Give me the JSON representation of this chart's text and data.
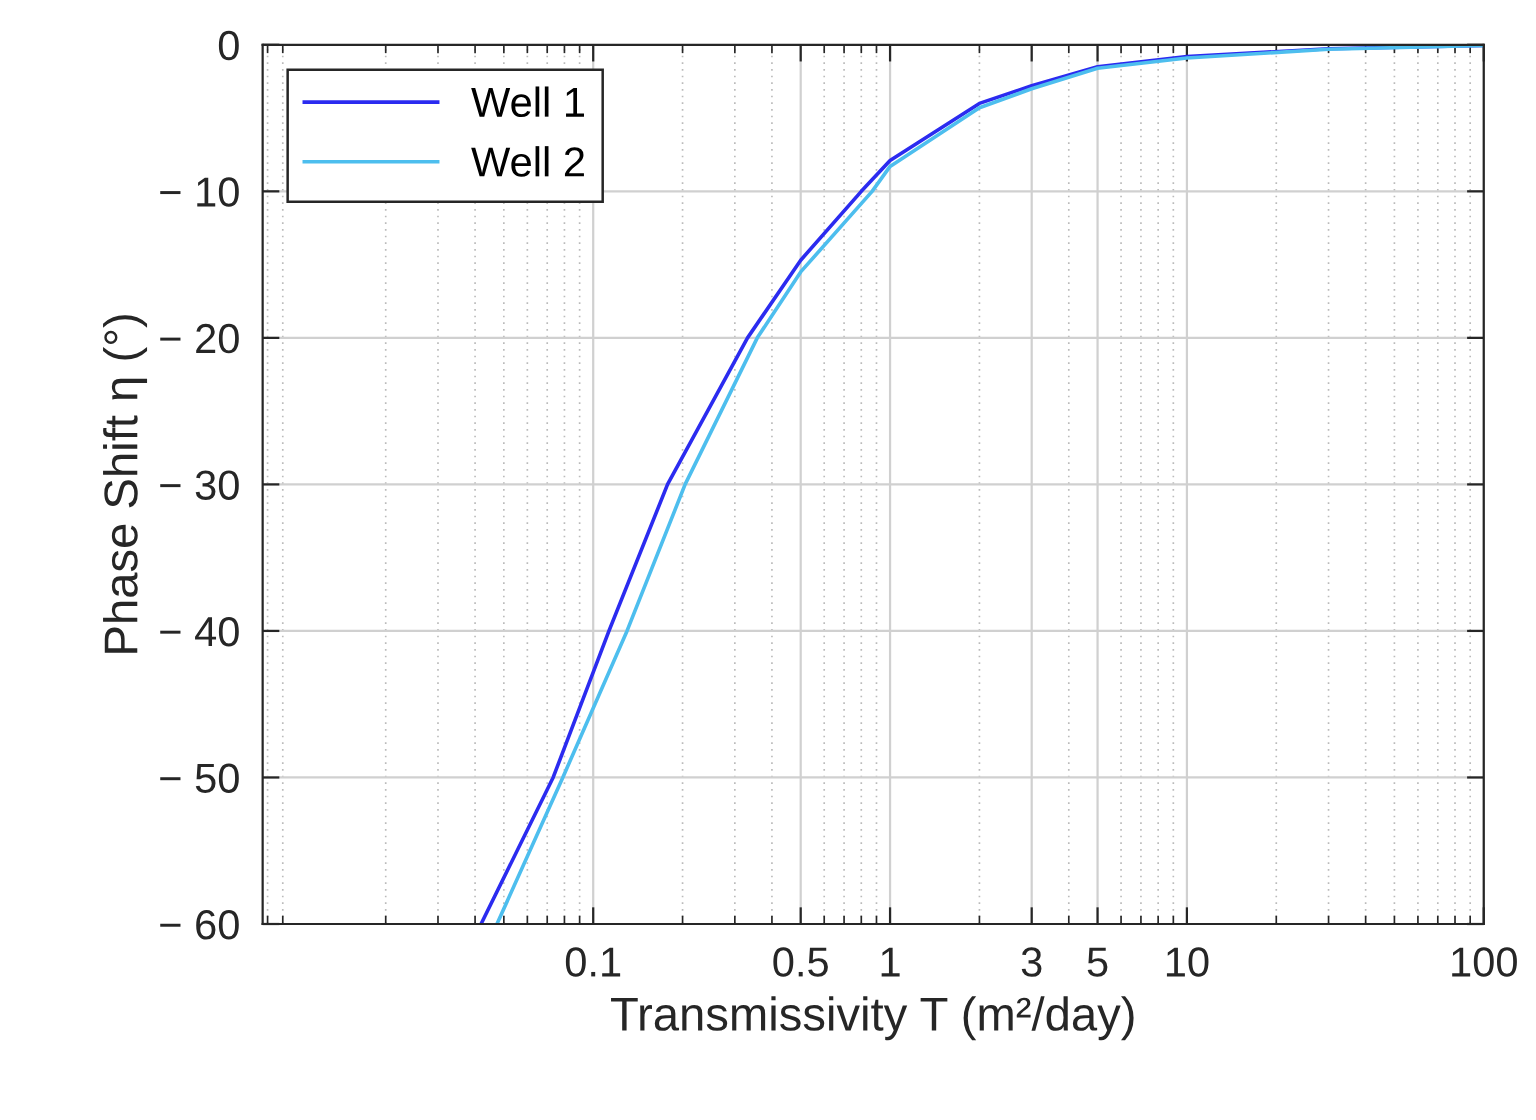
{
  "chart_data": {
    "type": "line",
    "xlabel": "Transmissivity T (m²/day)",
    "ylabel": "Phase Shift η (°)",
    "log": "x",
    "xlim": [
      0.0077,
      100
    ],
    "ylim": [
      -60,
      0
    ],
    "xticks": [
      0.1,
      0.5,
      1,
      3,
      5,
      10,
      100
    ],
    "yticks": [
      {
        "value": -60,
        "label": "− 60"
      },
      {
        "value": -50,
        "label": "− 50"
      },
      {
        "value": -40,
        "label": "− 40"
      },
      {
        "value": -30,
        "label": "− 30"
      },
      {
        "value": -20,
        "label": "− 20"
      },
      {
        "value": -10,
        "label": "− 10"
      },
      0
    ],
    "grid": true,
    "legend": "top left",
    "marker": "none",
    "line_style": "solid",
    "series": [
      {
        "name": "Well 1",
        "color": "#2b2bf0",
        "x": [
          0.0419,
          0.0733,
          0.113,
          0.178,
          0.331,
          0.5,
          0.8,
          1,
          2,
          3,
          5,
          10,
          30,
          100
        ],
        "values": [
          -60,
          -50,
          -40,
          -30,
          -20,
          -14.7,
          -10,
          -7.9,
          -4.0,
          -2.8,
          -1.5,
          -0.8,
          -0.27,
          -0.05
        ]
      },
      {
        "name": "Well 2",
        "color": "#4dbeee",
        "x": [
          0.0474,
          0.079,
          0.13,
          0.204,
          0.357,
          0.5,
          0.87,
          1,
          2,
          3,
          5,
          10,
          30,
          100
        ],
        "values": [
          -60,
          -50,
          -40,
          -30,
          -20,
          -15.5,
          -10,
          -8.3,
          -4.3,
          -3.0,
          -1.6,
          -0.9,
          -0.3,
          -0.05
        ]
      }
    ]
  }
}
